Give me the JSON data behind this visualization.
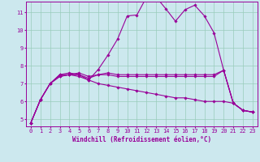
{
  "xlabel": "Windchill (Refroidissement éolien,°C)",
  "bg_color": "#cce8ee",
  "line_color": "#990099",
  "grid_color": "#99ccbb",
  "xlim": [
    -0.5,
    23.5
  ],
  "ylim": [
    4.6,
    11.6
  ],
  "xticks": [
    0,
    1,
    2,
    3,
    4,
    5,
    6,
    7,
    8,
    9,
    10,
    11,
    12,
    13,
    14,
    15,
    16,
    17,
    18,
    19,
    20,
    21,
    22,
    23
  ],
  "yticks": [
    5,
    6,
    7,
    8,
    9,
    10,
    11
  ],
  "series": [
    [
      4.8,
      6.1,
      7.0,
      7.5,
      7.6,
      7.5,
      7.2,
      7.8,
      8.6,
      9.5,
      10.8,
      10.85,
      11.85,
      11.85,
      11.2,
      10.5,
      11.15,
      11.4,
      10.8,
      9.85,
      7.75,
      5.9,
      5.5,
      5.4
    ],
    [
      4.8,
      6.1,
      7.0,
      7.5,
      7.5,
      7.5,
      7.3,
      7.5,
      7.6,
      7.5,
      7.5,
      7.5,
      7.5,
      7.5,
      7.5,
      7.5,
      7.5,
      7.5,
      7.5,
      7.5,
      7.75,
      5.9,
      5.5,
      5.4
    ],
    [
      4.8,
      6.1,
      7.0,
      7.4,
      7.5,
      7.4,
      7.2,
      7.0,
      6.9,
      6.8,
      6.7,
      6.6,
      6.5,
      6.4,
      6.3,
      6.2,
      6.2,
      6.1,
      6.0,
      6.0,
      6.0,
      5.9,
      5.5,
      5.4
    ],
    [
      4.8,
      6.1,
      7.0,
      7.4,
      7.5,
      7.6,
      7.4,
      7.5,
      7.5,
      7.4,
      7.4,
      7.4,
      7.4,
      7.4,
      7.4,
      7.4,
      7.4,
      7.4,
      7.4,
      7.4,
      7.75,
      5.9,
      5.5,
      5.4
    ]
  ],
  "xlabel_fontsize": 5.5,
  "tick_fontsize": 5.0
}
